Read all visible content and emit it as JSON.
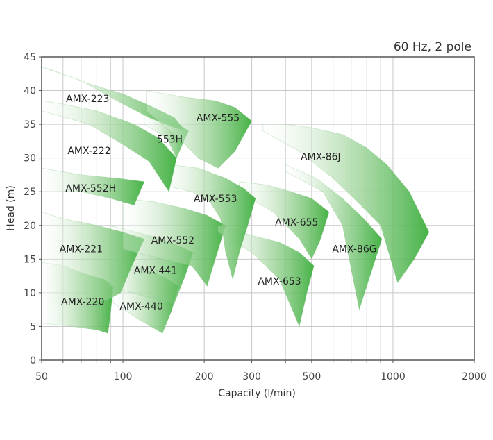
{
  "chart_data": {
    "type": "area",
    "title": "",
    "subtitle": "60 Hz, 2 pole",
    "xlabel": "Capacity (l/min)",
    "ylabel": "Head (m)",
    "xscale": "log",
    "xlim": [
      50,
      2000
    ],
    "ylim": [
      0,
      45
    ],
    "x_ticks": [
      50,
      100,
      200,
      300,
      500,
      1000,
      2000
    ],
    "x_tick_labels": [
      "50",
      "100",
      "200",
      "300",
      "500",
      "1000",
      "2000"
    ],
    "x_minor_gridlines": [
      60,
      70,
      80,
      90,
      400,
      600,
      700,
      800,
      900
    ],
    "y_ticks": [
      0,
      5,
      10,
      15,
      20,
      25,
      30,
      35,
      40,
      45
    ],
    "grid": true,
    "fill_color_dark": "#3cae3c",
    "fill_color_light": "#ffffff",
    "series": [
      {
        "name": "AMX-220",
        "label_at": [
          71,
          8.2
        ],
        "polygon": [
          [
            50,
            5.5
          ],
          [
            65,
            5.0
          ],
          [
            80,
            4.5
          ],
          [
            88,
            4.0
          ],
          [
            90,
            7.0
          ],
          [
            92,
            11.0
          ],
          [
            85,
            12.0
          ],
          [
            70,
            13.0
          ],
          [
            60,
            14.0
          ],
          [
            50,
            14.5
          ]
        ]
      },
      {
        "name": "AMX-440",
        "label_at": [
          117,
          7.5
        ],
        "polygon": [
          [
            92,
            8.5
          ],
          [
            115,
            6.0
          ],
          [
            140,
            4.0
          ],
          [
            152,
            7.5
          ],
          [
            160,
            11.0
          ],
          [
            140,
            12.5
          ],
          [
            120,
            13.5
          ],
          [
            100,
            14.5
          ],
          [
            92,
            15.0
          ]
        ]
      },
      {
        "name": "AMX-441",
        "label_at": [
          132,
          12.8
        ],
        "polygon": [
          [
            88,
            11.0
          ],
          [
            120,
            9.5
          ],
          [
            155,
            8.5
          ],
          [
            170,
            12.5
          ],
          [
            182,
            16.0
          ],
          [
            150,
            17.5
          ],
          [
            125,
            18.5
          ],
          [
            100,
            19.5
          ],
          [
            88,
            20.0
          ]
        ]
      },
      {
        "name": "AMX-221",
        "label_at": [
          70,
          16.0
        ],
        "polygon": [
          [
            50,
            8.5
          ],
          [
            70,
            8.5
          ],
          [
            88,
            9.0
          ],
          [
            98,
            10.0
          ],
          [
            108,
            14.0
          ],
          [
            120,
            18.0
          ],
          [
            100,
            19.0
          ],
          [
            80,
            20.0
          ],
          [
            60,
            21.0
          ],
          [
            50,
            22.0
          ]
        ]
      },
      {
        "name": "AMX-552",
        "label_at": [
          153,
          17.3
        ],
        "polygon": [
          [
            100,
            16.5
          ],
          [
            140,
            15.0
          ],
          [
            180,
            14.0
          ],
          [
            205,
            11.0
          ],
          [
            220,
            15.0
          ],
          [
            240,
            20.0
          ],
          [
            205,
            21.5
          ],
          [
            170,
            22.5
          ],
          [
            130,
            23.5
          ],
          [
            100,
            24.0
          ]
        ]
      },
      {
        "name": "AMX-653",
        "label_at": [
          380,
          11.2
        ],
        "polygon": [
          [
            225,
            19.0
          ],
          [
            300,
            16.0
          ],
          [
            380,
            12.0
          ],
          [
            450,
            5.0
          ],
          [
            480,
            10.0
          ],
          [
            510,
            14.0
          ],
          [
            450,
            16.0
          ],
          [
            380,
            17.5
          ],
          [
            300,
            18.5
          ],
          [
            250,
            19.5
          ],
          [
            225,
            20.0
          ]
        ]
      },
      {
        "name": "AMX-655",
        "label_at": [
          440,
          20.0
        ],
        "polygon": [
          [
            270,
            25.0
          ],
          [
            360,
            22.0
          ],
          [
            450,
            18.0
          ],
          [
            500,
            15.0
          ],
          [
            540,
            18.0
          ],
          [
            580,
            22.0
          ],
          [
            500,
            24.0
          ],
          [
            420,
            25.0
          ],
          [
            340,
            26.0
          ],
          [
            270,
            26.5
          ]
        ]
      },
      {
        "name": "AMX-86G",
        "label_at": [
          720,
          16.0
        ],
        "polygon": [
          [
            400,
            28.0
          ],
          [
            550,
            25.0
          ],
          [
            650,
            20.0
          ],
          [
            750,
            7.5
          ],
          [
            830,
            13.0
          ],
          [
            910,
            18.0
          ],
          [
            780,
            21.0
          ],
          [
            650,
            24.0
          ],
          [
            520,
            27.0
          ],
          [
            400,
            29.0
          ]
        ]
      },
      {
        "name": "AMX-86J",
        "label_at": [
          540,
          29.7
        ],
        "polygon": [
          [
            330,
            34.0
          ],
          [
            450,
            31.0
          ],
          [
            600,
            27.0
          ],
          [
            760,
            23.0
          ],
          [
            900,
            20.0
          ],
          [
            1040,
            11.5
          ],
          [
            1200,
            15.0
          ],
          [
            1360,
            19.0
          ],
          [
            1150,
            25.0
          ],
          [
            950,
            29.0
          ],
          [
            800,
            31.5
          ],
          [
            650,
            33.5
          ],
          [
            500,
            34.5
          ],
          [
            400,
            35.0
          ],
          [
            330,
            35.0
          ]
        ]
      },
      {
        "name": "AMX-553",
        "label_at": [
          220,
          23.5
        ],
        "polygon": [
          [
            140,
            26.0
          ],
          [
            180,
            25.0
          ],
          [
            210,
            23.5
          ],
          [
            230,
            21.0
          ],
          [
            240,
            16.0
          ],
          [
            255,
            12.0
          ],
          [
            270,
            16.0
          ],
          [
            290,
            20.0
          ],
          [
            310,
            24.0
          ],
          [
            280,
            25.5
          ],
          [
            240,
            27.0
          ],
          [
            190,
            28.5
          ],
          [
            150,
            29.0
          ],
          [
            140,
            29.0
          ]
        ]
      },
      {
        "name": "AMX-552H",
        "label_at": [
          76,
          25.0
        ],
        "polygon": [
          [
            50,
            28.5
          ],
          [
            70,
            27.5
          ],
          [
            95,
            27.0
          ],
          [
            120,
            26.5
          ],
          [
            110,
            23.0
          ],
          [
            90,
            24.0
          ],
          [
            70,
            25.0
          ],
          [
            55,
            25.0
          ],
          [
            50,
            25.0
          ]
        ]
      },
      {
        "name": "AMX-222",
        "label_at": [
          75,
          30.6
        ],
        "polygon": [
          [
            50,
            37.0
          ],
          [
            75,
            35.0
          ],
          [
            100,
            32.0
          ],
          [
            125,
            29.5
          ],
          [
            148,
            25.0
          ],
          [
            153,
            27.5
          ],
          [
            158,
            30.0
          ],
          [
            135,
            33.0
          ],
          [
            110,
            35.0
          ],
          [
            80,
            37.0
          ],
          [
            60,
            38.0
          ],
          [
            50,
            38.5
          ]
        ]
      },
      {
        "name": "553H",
        "label_at": [
          149,
          32.3
        ],
        "polygon": [
          [
            120,
            35.0
          ],
          [
            145,
            33.0
          ],
          [
            158,
            30.0
          ],
          [
            168,
            32.5
          ],
          [
            175,
            34.0
          ],
          [
            155,
            35.5
          ],
          [
            135,
            36.0
          ],
          [
            120,
            36.5
          ]
        ]
      },
      {
        "name": "AMX-223",
        "label_at": [
          74,
          38.3
        ],
        "polygon": [
          [
            50,
            43.5
          ],
          [
            70,
            41.5
          ],
          [
            95,
            38.5
          ],
          [
            125,
            36.0
          ],
          [
            155,
            34.5
          ],
          [
            170,
            34.0
          ],
          [
            155,
            36.0
          ],
          [
            130,
            37.5
          ],
          [
            100,
            39.5
          ],
          [
            75,
            41.0
          ],
          [
            55,
            43.0
          ]
        ]
      },
      {
        "name": "AMX-555",
        "label_at": [
          225,
          35.5
        ],
        "polygon": [
          [
            122,
            40.0
          ],
          [
            170,
            39.0
          ],
          [
            220,
            38.5
          ],
          [
            260,
            37.5
          ],
          [
            300,
            35.5
          ],
          [
            260,
            31.0
          ],
          [
            225,
            28.5
          ],
          [
            190,
            30.0
          ],
          [
            170,
            32.0
          ],
          [
            140,
            35.0
          ],
          [
            122,
            37.0
          ]
        ]
      }
    ]
  }
}
